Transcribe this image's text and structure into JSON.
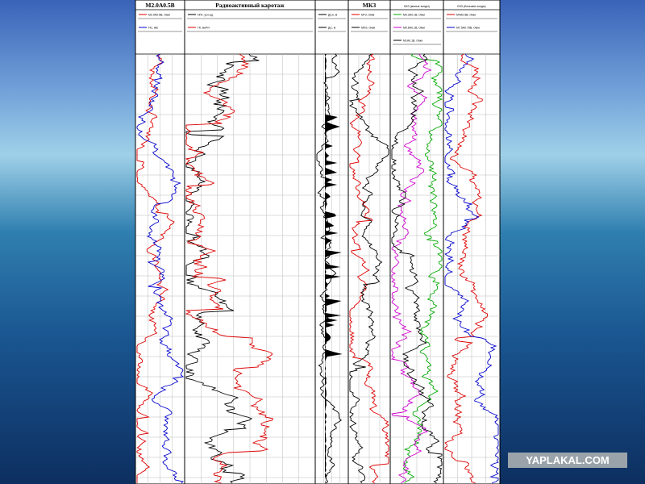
{
  "columns": [
    {
      "title": "М2.0А0.5В",
      "curves": [
        "М2.0А0.5В, Омм",
        "ПС, мВ"
      ]
    },
    {
      "title": "Радиоактивный каротаж",
      "curves": [
        "НГК, усл.ед.",
        "ГК, мкР/ч"
      ]
    },
    {
      "title": "",
      "curves": [
        "ДСн, м",
        "ДС, м"
      ]
    },
    {
      "title": "МКЗ",
      "curves": [
        "МГЗ, Омм",
        "МПЗ, Омм"
      ]
    },
    {
      "title": "БКЗ (малые зонды)",
      "curves": [
        "М0.3А0.1В, Омм",
        "М0.6А0.1В, Омм",
        "М1А0.1В, Омм"
      ]
    },
    {
      "title": "БКЗ (большие зонды)",
      "curves": [
        "М4А0.5В, Омм",
        "М7.5А0.75В, Омм"
      ]
    }
  ],
  "watermark": "YAPLAKAL.COM"
}
